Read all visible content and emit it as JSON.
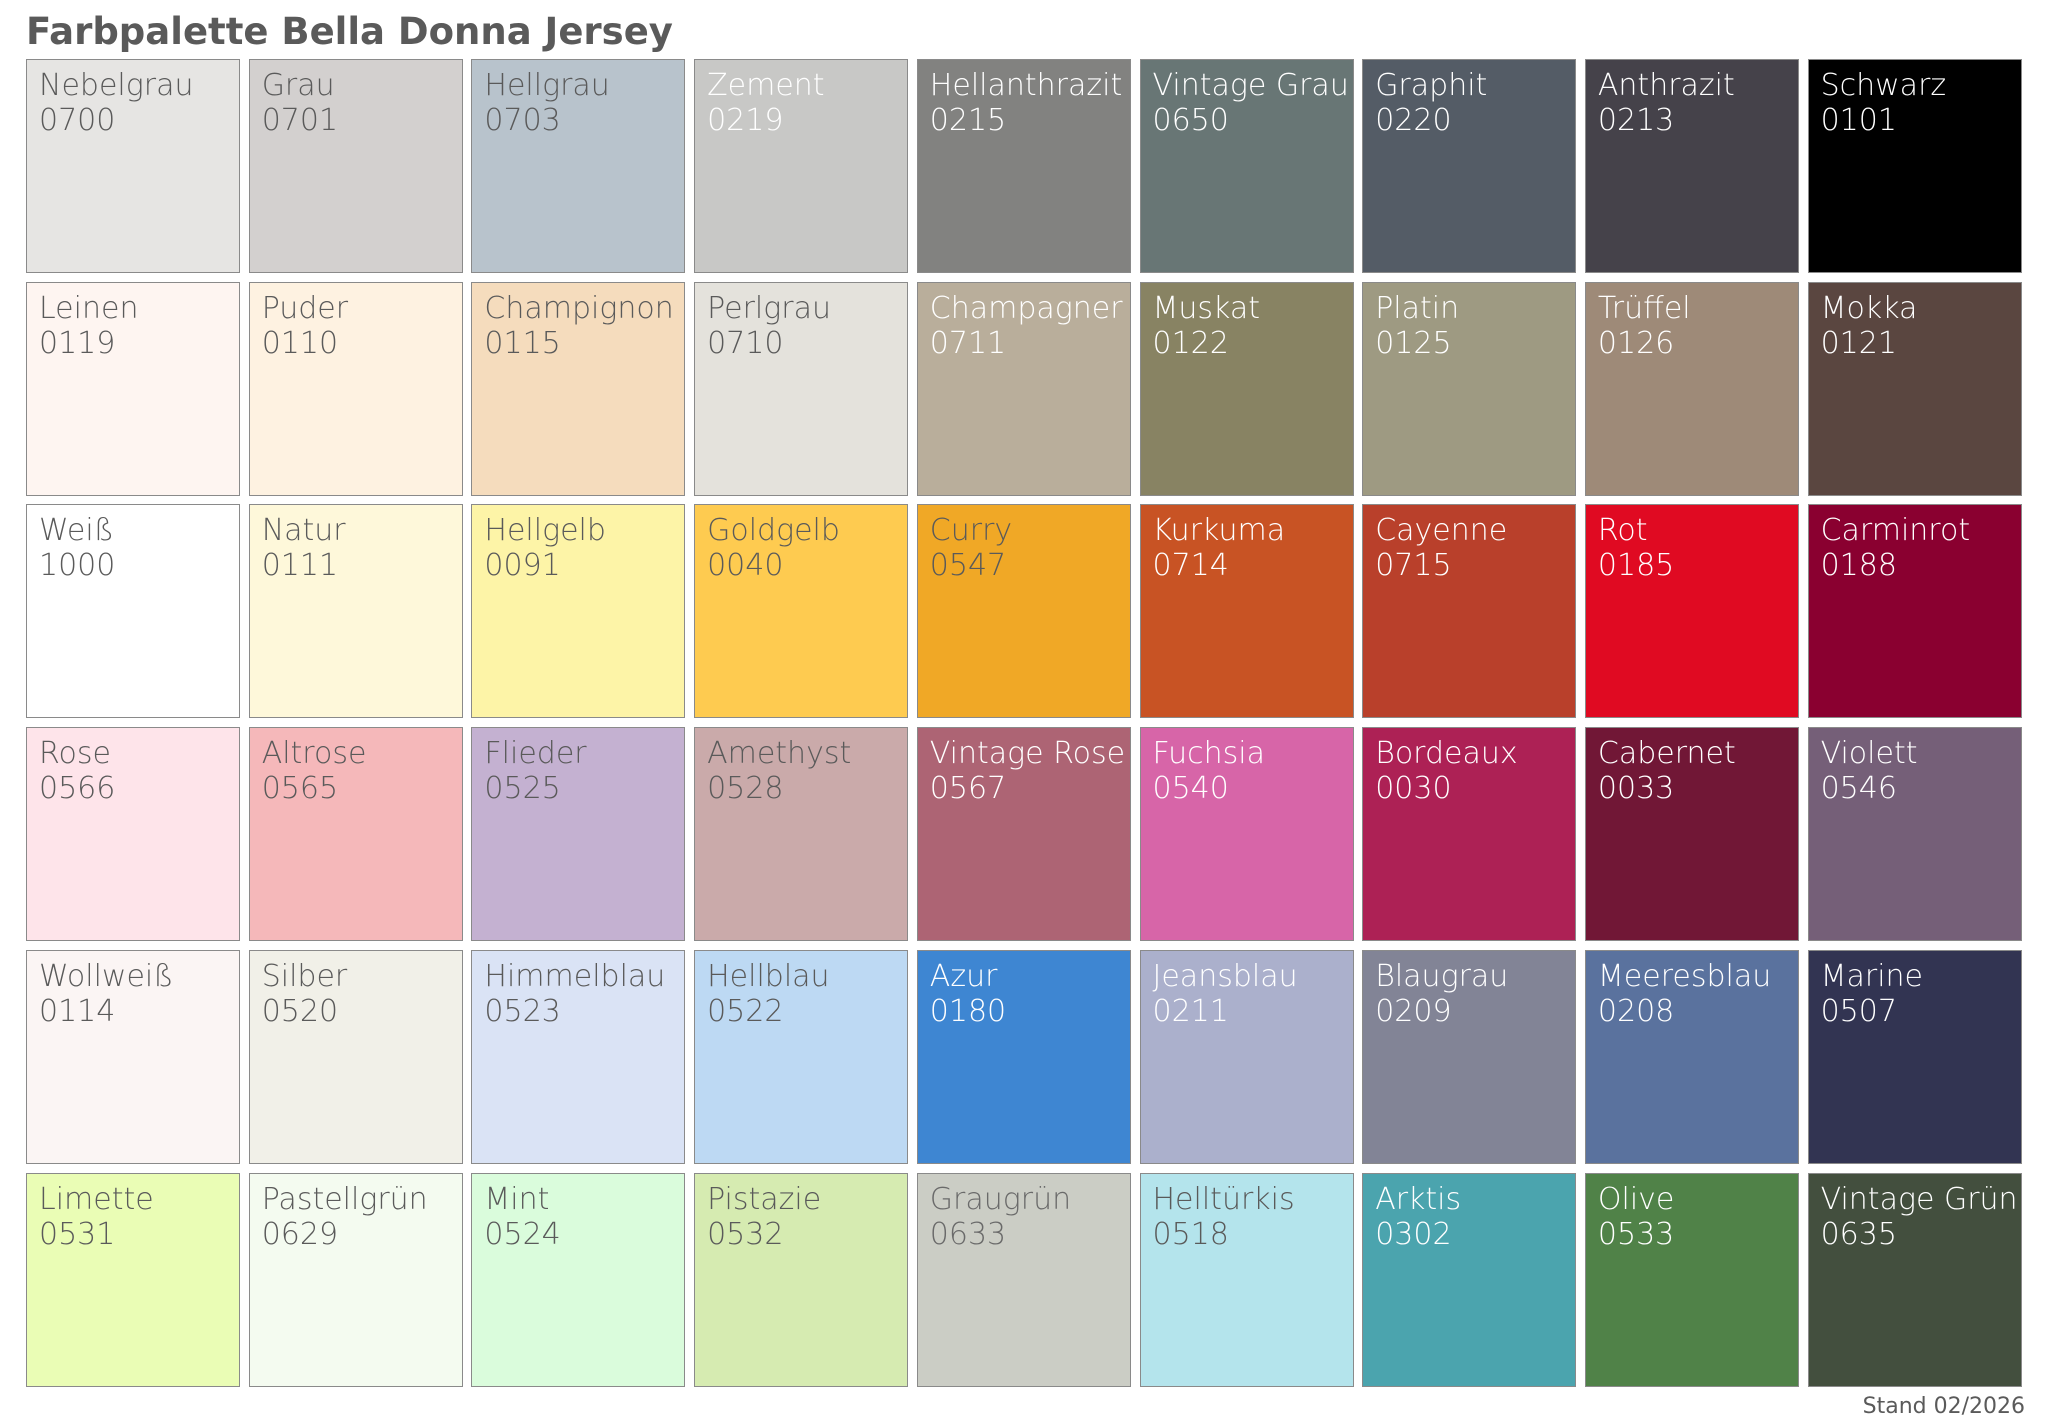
{
  "title": "Farbpalette Bella Donna Jersey",
  "footer": "Stand 02/2026",
  "rows": [
    [
      {
        "name": "Nebelgrau",
        "code": "0700",
        "color": "#e6e5e3",
        "text_color": "#5a5a5a"
      },
      {
        "name": "Grau",
        "code": "0701",
        "color": "#d3d0cf",
        "text_color": "#5a5a5a"
      },
      {
        "name": "Hellgrau",
        "code": "0703",
        "color": "#b8c3cc",
        "text_color": "#5a5a5a"
      },
      {
        "name": "Zement",
        "code": "0219",
        "color": "#c8c8c6",
        "text_color": "#ffffff"
      },
      {
        "name": "Hellanthrazit",
        "code": "0215",
        "color": "#828280",
        "text_color": "#ffffff"
      },
      {
        "name": "Vintage Grau",
        "code": "0650",
        "color": "#687675",
        "text_color": "#ffffff"
      },
      {
        "name": "Graphit",
        "code": "0220",
        "color": "#545c66",
        "text_color": "#ffffff"
      },
      {
        "name": "Anthrazit",
        "code": "0213",
        "color": "#45424a",
        "text_color": "#ffffff"
      },
      {
        "name": "Schwarz",
        "code": "0101",
        "color": "#000000",
        "text_color": "#ffffff"
      }
    ],
    [
      {
        "name": "Leinen",
        "code": "0119",
        "color": "#fef5f1",
        "text_color": "#5a5a5a"
      },
      {
        "name": "Puder",
        "code": "0110",
        "color": "#fef2e1",
        "text_color": "#5a5a5a"
      },
      {
        "name": "Champignon",
        "code": "0115",
        "color": "#f5dcbd",
        "text_color": "#5a5a5a"
      },
      {
        "name": "Perlgrau",
        "code": "0710",
        "color": "#e4e2dc",
        "text_color": "#5a5a5a"
      },
      {
        "name": "Champagner",
        "code": "0711",
        "color": "#b9ae9b",
        "text_color": "#ffffff"
      },
      {
        "name": "Muskat",
        "code": "0122",
        "color": "#888363",
        "text_color": "#ffffff"
      },
      {
        "name": "Platin",
        "code": "0125",
        "color": "#9e9a82",
        "text_color": "#ffffff"
      },
      {
        "name": "Trüffel",
        "code": "0126",
        "color": "#9e8a78",
        "text_color": "#ffffff"
      },
      {
        "name": "Mokka",
        "code": "0121",
        "color": "#5a4640",
        "text_color": "#ffffff"
      }
    ],
    [
      {
        "name": "Weiß",
        "code": "1000",
        "color": "#ffffff",
        "text_color": "#5a5a5a"
      },
      {
        "name": "Natur",
        "code": "0111",
        "color": "#fef8da",
        "text_color": "#5a5a5a"
      },
      {
        "name": "Hellgelb",
        "code": "0091",
        "color": "#fdf4a7",
        "text_color": "#5a5a5a"
      },
      {
        "name": "Goldgelb",
        "code": "0040",
        "color": "#fecb50",
        "text_color": "#5a5a5a"
      },
      {
        "name": "Curry",
        "code": "0547",
        "color": "#f0a826",
        "text_color": "#5a5a5a"
      },
      {
        "name": "Kurkuma",
        "code": "0714",
        "color": "#c85324",
        "text_color": "#ffffff"
      },
      {
        "name": "Cayenne",
        "code": "0715",
        "color": "#b9402b",
        "text_color": "#ffffff"
      },
      {
        "name": "Rot",
        "code": "0185",
        "color": "#e00a22",
        "text_color": "#ffffff"
      },
      {
        "name": "Carminrot",
        "code": "0188",
        "color": "#8a0030",
        "text_color": "#ffffff"
      }
    ],
    [
      {
        "name": "Rose",
        "code": "0566",
        "color": "#fee4ea",
        "text_color": "#5a5a5a"
      },
      {
        "name": "Altrose",
        "code": "0565",
        "color": "#f5b8ba",
        "text_color": "#5a5a5a"
      },
      {
        "name": "Flieder",
        "code": "0525",
        "color": "#c4b1d1",
        "text_color": "#5a5a5a"
      },
      {
        "name": "Amethyst",
        "code": "0528",
        "color": "#caaaaa",
        "text_color": "#5a5a5a"
      },
      {
        "name": "Vintage Rose",
        "code": "0567",
        "color": "#ad6474",
        "text_color": "#ffffff"
      },
      {
        "name": "Fuchsia",
        "code": "0540",
        "color": "#d765a8",
        "text_color": "#ffffff"
      },
      {
        "name": "Bordeaux",
        "code": "0030",
        "color": "#ad2155",
        "text_color": "#ffffff"
      },
      {
        "name": "Cabernet",
        "code": "0033",
        "color": "#711736",
        "text_color": "#ffffff"
      },
      {
        "name": "Violett",
        "code": "0546",
        "color": "#755f78",
        "text_color": "#ffffff"
      }
    ],
    [
      {
        "name": "Wollweiß",
        "code": "0114",
        "color": "#fbf5f4",
        "text_color": "#5a5a5a"
      },
      {
        "name": "Silber",
        "code": "0520",
        "color": "#f1f0e8",
        "text_color": "#5a5a5a"
      },
      {
        "name": "Himmelblau",
        "code": "0523",
        "color": "#dae3f5",
        "text_color": "#5a5a5a"
      },
      {
        "name": "Hellblau",
        "code": "0522",
        "color": "#bdd9f3",
        "text_color": "#5a5a5a"
      },
      {
        "name": "Azur",
        "code": "0180",
        "color": "#3e86d2",
        "text_color": "#ffffff"
      },
      {
        "name": "Jeansblau",
        "code": "0211",
        "color": "#abb0cc",
        "text_color": "#ffffff"
      },
      {
        "name": "Blaugrau",
        "code": "0209",
        "color": "#828496",
        "text_color": "#ffffff"
      },
      {
        "name": "Meeresblau",
        "code": "0208",
        "color": "#5a729e",
        "text_color": "#ffffff"
      },
      {
        "name": "Marine",
        "code": "0507",
        "color": "#323452",
        "text_color": "#ffffff"
      }
    ],
    [
      {
        "name": "Limette",
        "code": "0531",
        "color": "#eafdb5",
        "text_color": "#5a5a5a"
      },
      {
        "name": "Pastellgrün",
        "code": "0629",
        "color": "#f4fbf0",
        "text_color": "#5a5a5a"
      },
      {
        "name": "Mint",
        "code": "0524",
        "color": "#dafcdc",
        "text_color": "#5a5a5a"
      },
      {
        "name": "Pistazie",
        "code": "0532",
        "color": "#d6ebb1",
        "text_color": "#5a5a5a"
      },
      {
        "name": "Graugrün",
        "code": "0633",
        "color": "#cbcdc5",
        "text_color": "#6a6a6a"
      },
      {
        "name": "Helltürkis",
        "code": "0518",
        "color": "#b4e4ec",
        "text_color": "#5a5a5a"
      },
      {
        "name": "Arktis",
        "code": "0302",
        "color": "#4ba4ae",
        "text_color": "#ffffff"
      },
      {
        "name": "Olive",
        "code": "0533",
        "color": "#508248",
        "text_color": "#ffffff"
      },
      {
        "name": "Vintage Grün",
        "code": "0635",
        "color": "#434f3e",
        "text_color": "#ffffff"
      }
    ]
  ]
}
